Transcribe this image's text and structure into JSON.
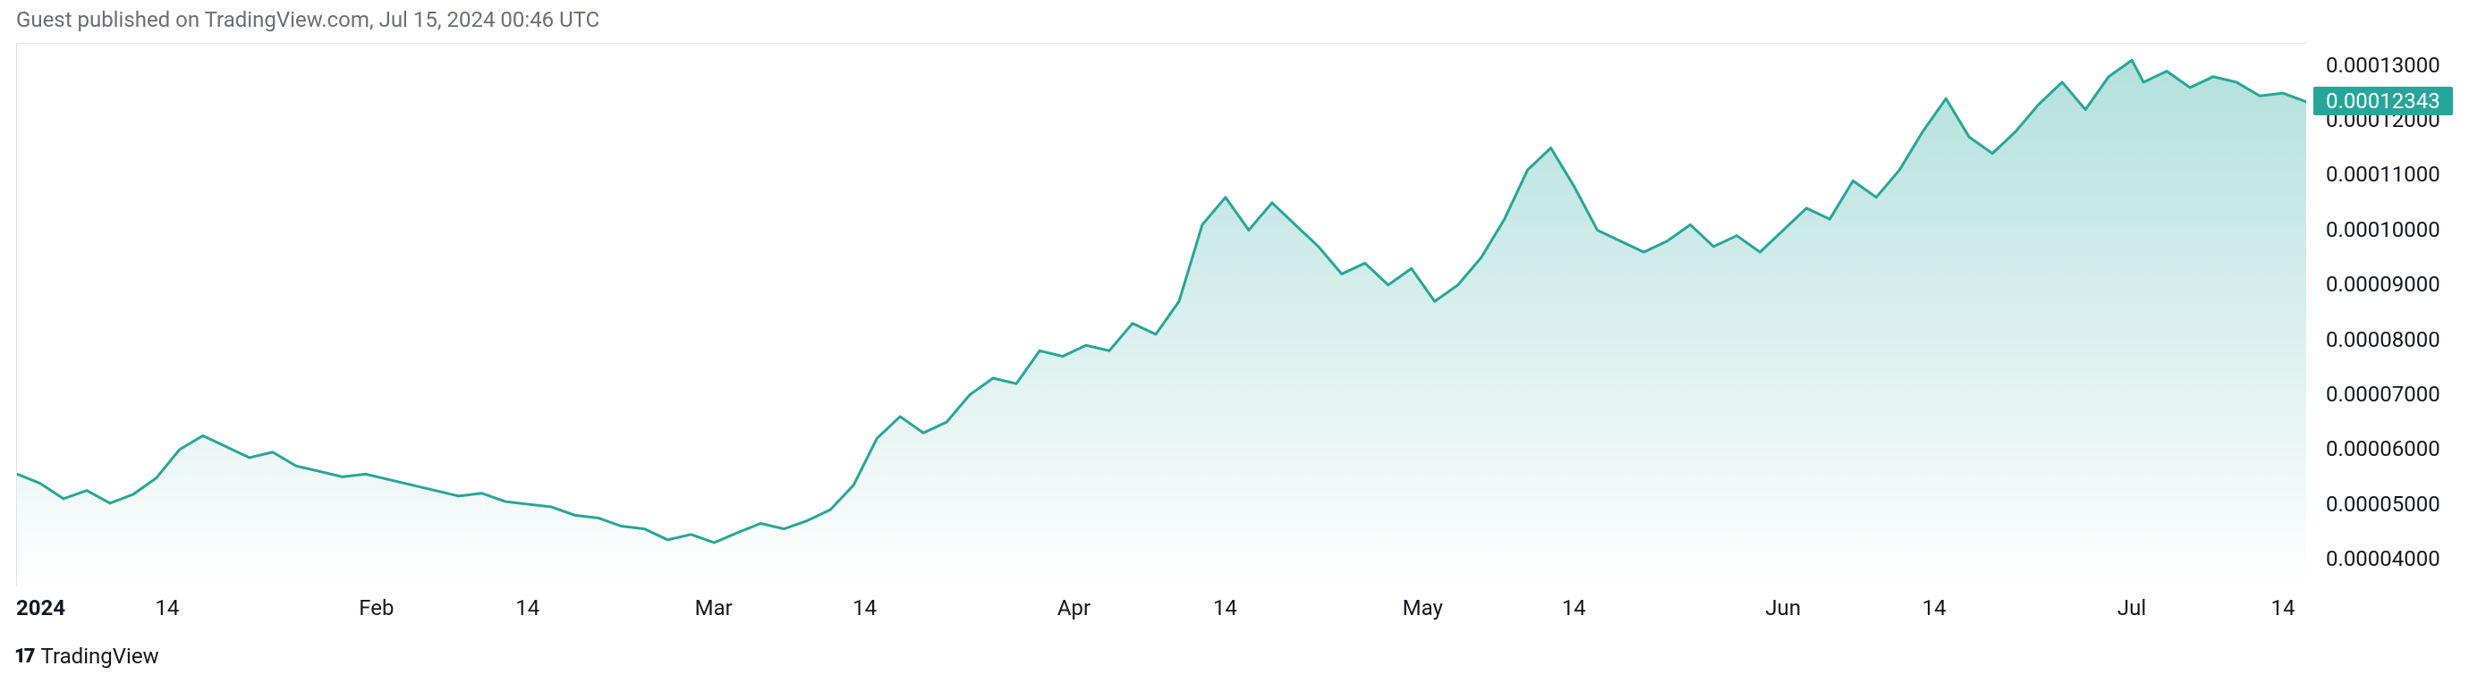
{
  "header": {
    "text": "Guest published on TradingView.com, Jul 15, 2024 00:46 UTC"
  },
  "footer": {
    "brand": "TradingView"
  },
  "chart": {
    "type": "area",
    "line_color": "#26a69a",
    "line_width": 3,
    "fill_top_color": "rgba(38,166,154,0.35)",
    "fill_bottom_color": "rgba(38,166,154,0.0)",
    "background_color": "#ffffff",
    "border_color": "#e0e3eb",
    "y_axis": {
      "min": 3.5e-05,
      "max": 0.000134,
      "ticks": [
        {
          "v": 0.00013,
          "label": "0.00013000"
        },
        {
          "v": 0.00012,
          "label": "0.00012000"
        },
        {
          "v": 0.00011,
          "label": "0.00011000"
        },
        {
          "v": 0.0001,
          "label": "0.00010000"
        },
        {
          "v": 9e-05,
          "label": "0.00009000"
        },
        {
          "v": 8e-05,
          "label": "0.00008000"
        },
        {
          "v": 7e-05,
          "label": "0.00007000"
        },
        {
          "v": 6e-05,
          "label": "0.00006000"
        },
        {
          "v": 5e-05,
          "label": "0.00005000"
        },
        {
          "v": 4e-05,
          "label": "0.00004000"
        }
      ],
      "price_tag": {
        "v": 0.00012343,
        "label": "0.00012343",
        "bg": "#26a69a"
      },
      "tick_fontsize": 24,
      "tick_color": "#131722"
    },
    "x_axis": {
      "min": 0,
      "max": 197,
      "ticks": [
        {
          "x": 0,
          "label": "2024",
          "bold": true
        },
        {
          "x": 13,
          "label": "14"
        },
        {
          "x": 31,
          "label": "Feb"
        },
        {
          "x": 44,
          "label": "14"
        },
        {
          "x": 60,
          "label": "Mar"
        },
        {
          "x": 73,
          "label": "14"
        },
        {
          "x": 91,
          "label": "Apr"
        },
        {
          "x": 104,
          "label": "14"
        },
        {
          "x": 121,
          "label": "May"
        },
        {
          "x": 134,
          "label": "14"
        },
        {
          "x": 152,
          "label": "Jun"
        },
        {
          "x": 165,
          "label": "14"
        },
        {
          "x": 182,
          "label": "Jul"
        },
        {
          "x": 195,
          "label": "14"
        }
      ],
      "tick_fontsize": 24,
      "tick_color": "#131722"
    },
    "series": [
      {
        "x": 0,
        "y": 5.55e-05
      },
      {
        "x": 2,
        "y": 5.38e-05
      },
      {
        "x": 4,
        "y": 5.1e-05
      },
      {
        "x": 6,
        "y": 5.25e-05
      },
      {
        "x": 8,
        "y": 5.02e-05
      },
      {
        "x": 10,
        "y": 5.18e-05
      },
      {
        "x": 12,
        "y": 5.48e-05
      },
      {
        "x": 14,
        "y": 6e-05
      },
      {
        "x": 16,
        "y": 6.25e-05
      },
      {
        "x": 18,
        "y": 6.05e-05
      },
      {
        "x": 20,
        "y": 5.85e-05
      },
      {
        "x": 22,
        "y": 5.95e-05
      },
      {
        "x": 24,
        "y": 5.7e-05
      },
      {
        "x": 26,
        "y": 5.6e-05
      },
      {
        "x": 28,
        "y": 5.5e-05
      },
      {
        "x": 30,
        "y": 5.55e-05
      },
      {
        "x": 32,
        "y": 5.45e-05
      },
      {
        "x": 34,
        "y": 5.35e-05
      },
      {
        "x": 36,
        "y": 5.25e-05
      },
      {
        "x": 38,
        "y": 5.15e-05
      },
      {
        "x": 40,
        "y": 5.2e-05
      },
      {
        "x": 42,
        "y": 5.05e-05
      },
      {
        "x": 44,
        "y": 5e-05
      },
      {
        "x": 46,
        "y": 4.95e-05
      },
      {
        "x": 48,
        "y": 4.8e-05
      },
      {
        "x": 50,
        "y": 4.75e-05
      },
      {
        "x": 52,
        "y": 4.6e-05
      },
      {
        "x": 54,
        "y": 4.55e-05
      },
      {
        "x": 56,
        "y": 4.35e-05
      },
      {
        "x": 58,
        "y": 4.45e-05
      },
      {
        "x": 60,
        "y": 4.3e-05
      },
      {
        "x": 62,
        "y": 4.48e-05
      },
      {
        "x": 64,
        "y": 4.65e-05
      },
      {
        "x": 66,
        "y": 4.55e-05
      },
      {
        "x": 68,
        "y": 4.7e-05
      },
      {
        "x": 70,
        "y": 4.9e-05
      },
      {
        "x": 72,
        "y": 5.35e-05
      },
      {
        "x": 74,
        "y": 6.2e-05
      },
      {
        "x": 76,
        "y": 6.6e-05
      },
      {
        "x": 78,
        "y": 6.3e-05
      },
      {
        "x": 80,
        "y": 6.5e-05
      },
      {
        "x": 82,
        "y": 7e-05
      },
      {
        "x": 84,
        "y": 7.3e-05
      },
      {
        "x": 86,
        "y": 7.2e-05
      },
      {
        "x": 88,
        "y": 7.8e-05
      },
      {
        "x": 90,
        "y": 7.7e-05
      },
      {
        "x": 92,
        "y": 7.9e-05
      },
      {
        "x": 94,
        "y": 7.8e-05
      },
      {
        "x": 96,
        "y": 8.3e-05
      },
      {
        "x": 98,
        "y": 8.1e-05
      },
      {
        "x": 100,
        "y": 8.7e-05
      },
      {
        "x": 102,
        "y": 0.000101
      },
      {
        "x": 104,
        "y": 0.000106
      },
      {
        "x": 106,
        "y": 0.0001
      },
      {
        "x": 108,
        "y": 0.000105
      },
      {
        "x": 110,
        "y": 0.000101
      },
      {
        "x": 112,
        "y": 9.7e-05
      },
      {
        "x": 114,
        "y": 9.2e-05
      },
      {
        "x": 116,
        "y": 9.4e-05
      },
      {
        "x": 118,
        "y": 9e-05
      },
      {
        "x": 120,
        "y": 9.3e-05
      },
      {
        "x": 122,
        "y": 8.7e-05
      },
      {
        "x": 124,
        "y": 9e-05
      },
      {
        "x": 126,
        "y": 9.5e-05
      },
      {
        "x": 128,
        "y": 0.000102
      },
      {
        "x": 130,
        "y": 0.000111
      },
      {
        "x": 132,
        "y": 0.000115
      },
      {
        "x": 134,
        "y": 0.000108
      },
      {
        "x": 136,
        "y": 0.0001
      },
      {
        "x": 138,
        "y": 9.8e-05
      },
      {
        "x": 140,
        "y": 9.6e-05
      },
      {
        "x": 142,
        "y": 9.8e-05
      },
      {
        "x": 144,
        "y": 0.000101
      },
      {
        "x": 146,
        "y": 9.7e-05
      },
      {
        "x": 148,
        "y": 9.9e-05
      },
      {
        "x": 150,
        "y": 9.6e-05
      },
      {
        "x": 152,
        "y": 0.0001
      },
      {
        "x": 154,
        "y": 0.000104
      },
      {
        "x": 156,
        "y": 0.000102
      },
      {
        "x": 158,
        "y": 0.000109
      },
      {
        "x": 160,
        "y": 0.000106
      },
      {
        "x": 162,
        "y": 0.000111
      },
      {
        "x": 164,
        "y": 0.000118
      },
      {
        "x": 166,
        "y": 0.000124
      },
      {
        "x": 168,
        "y": 0.000117
      },
      {
        "x": 170,
        "y": 0.000114
      },
      {
        "x": 172,
        "y": 0.000118
      },
      {
        "x": 174,
        "y": 0.000123
      },
      {
        "x": 176,
        "y": 0.000127
      },
      {
        "x": 178,
        "y": 0.000122
      },
      {
        "x": 180,
        "y": 0.000128
      },
      {
        "x": 182,
        "y": 0.000131
      },
      {
        "x": 183,
        "y": 0.000127
      },
      {
        "x": 185,
        "y": 0.000129
      },
      {
        "x": 187,
        "y": 0.000126
      },
      {
        "x": 189,
        "y": 0.000128
      },
      {
        "x": 191,
        "y": 0.000127
      },
      {
        "x": 193,
        "y": 0.0001245
      },
      {
        "x": 195,
        "y": 0.000125
      },
      {
        "x": 197,
        "y": 0.00012343
      }
    ]
  }
}
